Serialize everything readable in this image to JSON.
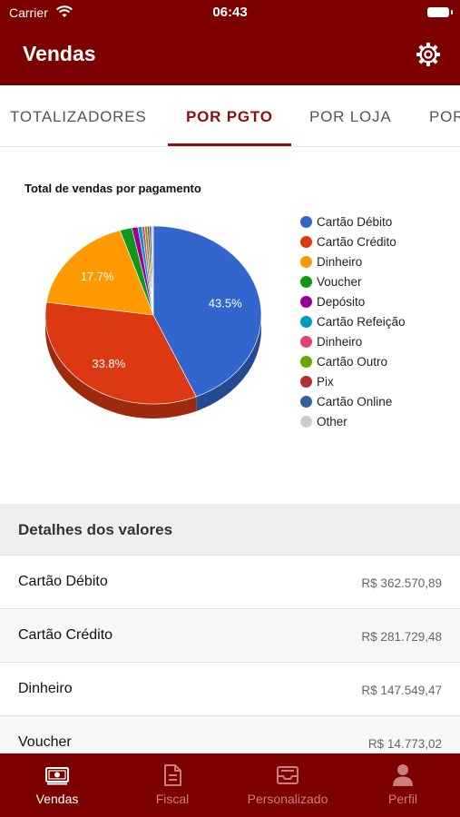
{
  "status_bar": {
    "carrier": "Carrier",
    "time": "06:43"
  },
  "header": {
    "title": "Vendas",
    "settings_icon": "gear-icon"
  },
  "tabs": [
    {
      "label": "TOTALIZADORES",
      "active": false
    },
    {
      "label": "POR PGTO",
      "active": true
    },
    {
      "label": "POR LOJA",
      "active": false
    },
    {
      "label": "POR",
      "active": false
    }
  ],
  "chart_data": {
    "type": "pie",
    "title": "Total de vendas por pagamento",
    "legend_position": "right",
    "categories": [
      "Cartão Débito",
      "Cartão Crédito",
      "Dinheiro",
      "Voucher",
      "Depósito",
      "Cartão Refeição",
      "Dinheiro",
      "Cartão Outro",
      "Pix",
      "Cartão Online",
      "Other"
    ],
    "values": [
      43.5,
      33.8,
      17.7,
      1.8,
      0.9,
      0.6,
      0.4,
      0.4,
      0.3,
      0.3,
      0.3
    ],
    "value_labels": [
      "43.5%",
      "33.8%",
      "17.7%",
      "",
      "",
      "",
      "",
      "",
      "",
      "",
      ""
    ],
    "colors": [
      "#3366cc",
      "#dc3912",
      "#ff9900",
      "#109618",
      "#990099",
      "#0099c6",
      "#dd4477",
      "#66aa00",
      "#b82e2e",
      "#316395",
      "#cccccc"
    ]
  },
  "details": {
    "title": "Detalhes dos valores",
    "rows": [
      {
        "name": "Cartão Débito",
        "value": "R$ 362.570,89"
      },
      {
        "name": "Cartão Crédito",
        "value": "R$ 281.729,48"
      },
      {
        "name": "Dinheiro",
        "value": "R$ 147.549,47"
      },
      {
        "name": "Voucher",
        "value": "R$ 14.773,02"
      }
    ]
  },
  "bottom_nav": [
    {
      "label": "Vendas",
      "icon": "money-icon",
      "active": true
    },
    {
      "label": "Fiscal",
      "icon": "document-icon",
      "active": false
    },
    {
      "label": "Personalizado",
      "icon": "inbox-icon",
      "active": false
    },
    {
      "label": "Perfil",
      "icon": "person-icon",
      "active": false
    }
  ]
}
